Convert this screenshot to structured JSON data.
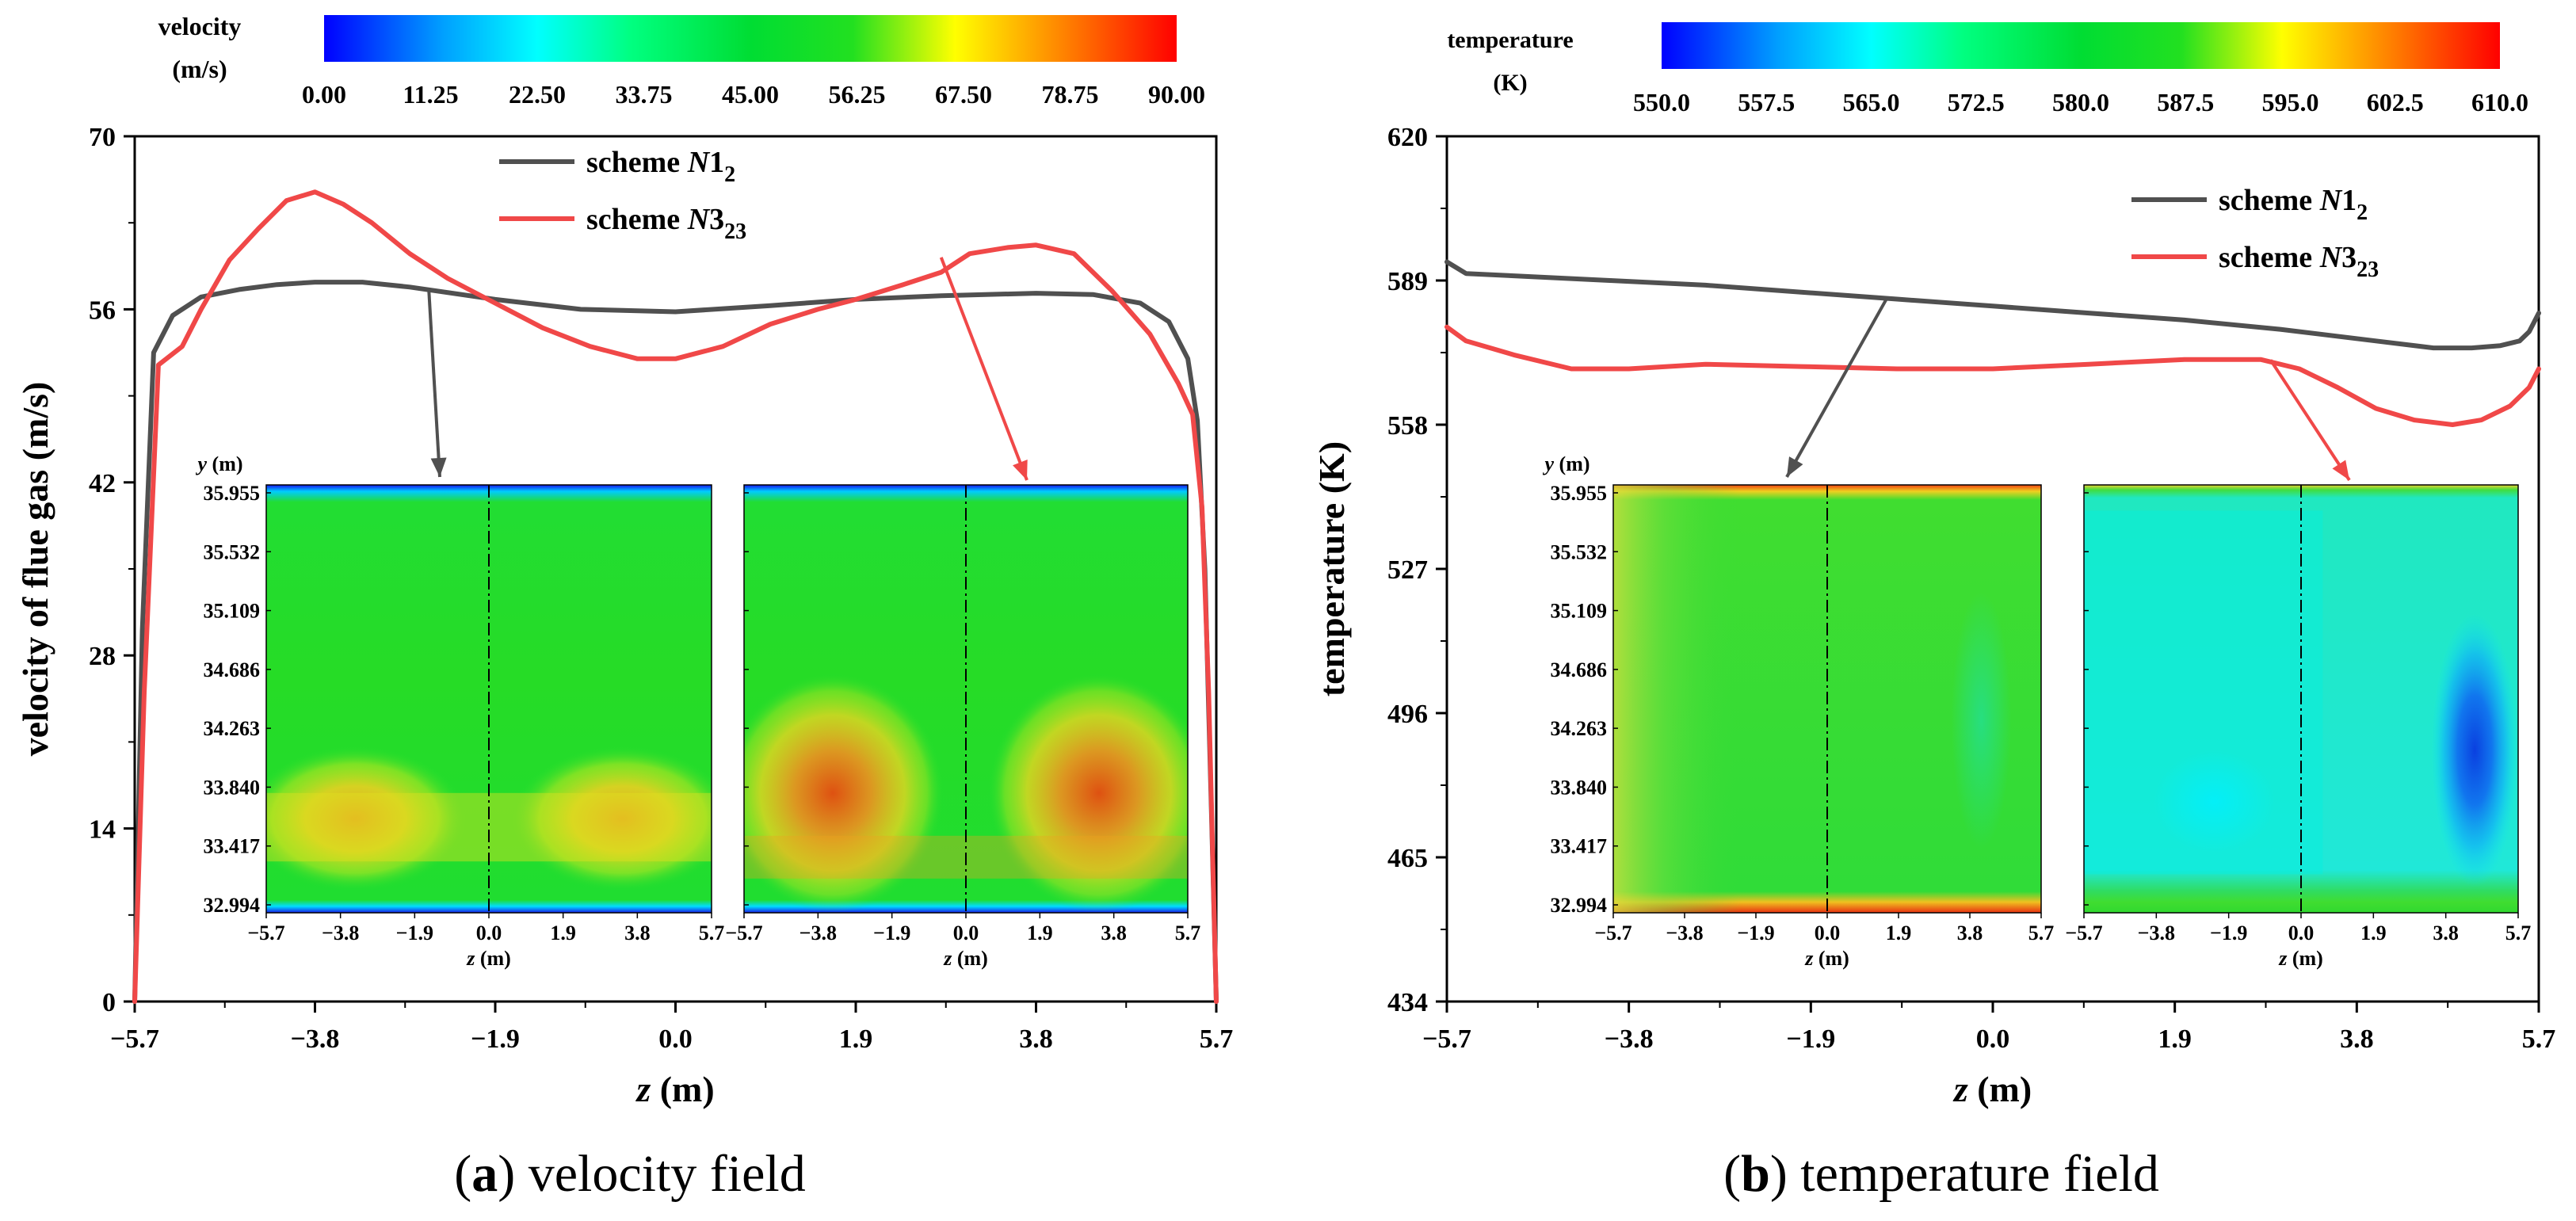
{
  "colors": {
    "n1_line": "#505050",
    "n3_line": "#f04848",
    "axis": "#000000",
    "colormap": [
      "#0000ff",
      "#00a0ff",
      "#00ffff",
      "#00ff80",
      "#00dd33",
      "#22e020",
      "#ffff00",
      "#ff8000",
      "#ff0000"
    ]
  },
  "panels": [
    {
      "id": "a",
      "caption_label": "a",
      "caption_text": "velocity field",
      "colorbar": {
        "label_line1": "velocity",
        "label_line2": "(m/s)",
        "ticks": [
          "0.00",
          "11.25",
          "22.50",
          "33.75",
          "45.00",
          "56.25",
          "67.50",
          "78.75",
          "90.00"
        ]
      },
      "chart_data": {
        "type": "line",
        "title": "",
        "xlabel": "z (m)",
        "xlabel_var": "z",
        "xlabel_unit": " (m)",
        "ylabel": "velocity of flue gas (m/s)",
        "xlim": [
          -5.7,
          5.7
        ],
        "ylim": [
          0,
          70
        ],
        "xticks": [
          "-5.7",
          "-3.8",
          "-1.9",
          "0.0",
          "1.9",
          "3.8",
          "5.7"
        ],
        "yticks": [
          "0",
          "14",
          "28",
          "42",
          "56",
          "70"
        ],
        "legend_position": "top-center",
        "series": [
          {
            "name": "scheme N1_2",
            "legend_prefix": "scheme ",
            "legend_var": "N",
            "legend_num": "1",
            "legend_sub": "2",
            "x": [
              -5.7,
              -5.62,
              -5.5,
              -5.3,
              -5.0,
              -4.6,
              -4.2,
              -3.8,
              -3.3,
              -2.8,
              -1.9,
              -1.0,
              0.0,
              1.0,
              1.9,
              2.8,
              3.8,
              4.4,
              4.9,
              5.2,
              5.4,
              5.5,
              5.58,
              5.65,
              5.7
            ],
            "values": [
              0,
              30,
              52.5,
              55.5,
              57,
              57.6,
              58.0,
              58.2,
              58.2,
              57.8,
              56.8,
              56.0,
              55.8,
              56.3,
              56.8,
              57.1,
              57.3,
              57.2,
              56.5,
              55.0,
              52.0,
              47.0,
              35.0,
              15.0,
              0
            ]
          },
          {
            "name": "scheme N3_23",
            "legend_prefix": "scheme ",
            "legend_var": "N",
            "legend_num": "3",
            "legend_sub": "23",
            "x": [
              -5.7,
              -5.6,
              -5.45,
              -5.2,
              -5.0,
              -4.7,
              -4.4,
              -4.1,
              -3.8,
              -3.5,
              -3.2,
              -2.8,
              -2.4,
              -1.9,
              -1.4,
              -0.9,
              -0.4,
              0.0,
              0.5,
              1.0,
              1.5,
              1.9,
              2.4,
              2.8,
              3.1,
              3.5,
              3.8,
              4.2,
              4.6,
              5.0,
              5.3,
              5.45,
              5.55,
              5.62,
              5.7
            ],
            "values": [
              0,
              25,
              51.5,
              53,
              56,
              60,
              62.5,
              64.8,
              65.5,
              64.5,
              63,
              60.5,
              58.5,
              56.5,
              54.5,
              53.0,
              52.0,
              52.0,
              53.0,
              54.8,
              56.0,
              56.8,
              58.0,
              59.0,
              60.5,
              61.0,
              61.2,
              60.5,
              57.5,
              54.0,
              50.0,
              47.5,
              40.0,
              25.0,
              0
            ]
          }
        ]
      },
      "insets": {
        "ylabel": "y (m)",
        "xlabel": "z (m)",
        "yticks": [
          "35.955",
          "35.532",
          "35.109",
          "34.686",
          "34.263",
          "33.840",
          "33.417",
          "32.994"
        ],
        "xticks": [
          "-5.7",
          "-3.8",
          "-1.9",
          "0.0",
          "1.9",
          "3.8",
          "5.7"
        ]
      }
    },
    {
      "id": "b",
      "caption_label": "b",
      "caption_text": "temperature field",
      "colorbar": {
        "label_line1": "temperature",
        "label_line2": "(K)",
        "ticks": [
          "550.0",
          "557.5",
          "565.0",
          "572.5",
          "580.0",
          "587.5",
          "595.0",
          "602.5",
          "610.0"
        ]
      },
      "chart_data": {
        "type": "line",
        "title": "",
        "xlabel": "z (m)",
        "xlabel_var": "z",
        "xlabel_unit": " (m)",
        "ylabel": "temperature  (K)",
        "xlim": [
          -5.7,
          5.7
        ],
        "ylim": [
          434,
          620
        ],
        "xticks": [
          "-5.7",
          "-3.8",
          "-1.9",
          "0.0",
          "1.9",
          "3.8",
          "5.7"
        ],
        "yticks": [
          "434",
          "465",
          "496",
          "527",
          "558",
          "589",
          "620"
        ],
        "legend_position": "top-right",
        "series": [
          {
            "name": "scheme N1_2",
            "legend_prefix": "scheme ",
            "legend_var": "N",
            "legend_num": "1",
            "legend_sub": "2",
            "x": [
              -5.7,
              -5.5,
              -5.0,
              -4.0,
              -3.0,
              -2.0,
              -1.0,
              0.0,
              1.0,
              2.0,
              3.0,
              4.0,
              4.6,
              5.0,
              5.3,
              5.5,
              5.6,
              5.7
            ],
            "values": [
              593,
              590.5,
              590,
              589,
              588,
              586.5,
              585,
              583.5,
              582,
              580.5,
              578.5,
              576,
              574.5,
              574.5,
              575,
              576,
              578,
              582
            ]
          },
          {
            "name": "scheme N3_23",
            "legend_prefix": "scheme ",
            "legend_var": "N",
            "legend_num": "3",
            "legend_sub": "23",
            "x": [
              -5.7,
              -5.5,
              -5.0,
              -4.4,
              -3.8,
              -3.0,
              -2.0,
              -1.0,
              0.0,
              1.0,
              2.0,
              2.8,
              3.2,
              3.6,
              4.0,
              4.4,
              4.8,
              5.1,
              5.4,
              5.6,
              5.7
            ],
            "values": [
              579,
              576,
              573,
              570,
              570,
              571,
              570.5,
              570,
              570,
              571,
              572,
              572,
              570,
              566,
              561.5,
              559,
              558,
              559,
              562,
              566,
              570
            ]
          }
        ]
      },
      "insets": {
        "ylabel": "y (m)",
        "xlabel": "z (m)",
        "yticks": [
          "35.955",
          "35.532",
          "35.109",
          "34.686",
          "34.263",
          "33.840",
          "33.417",
          "32.994"
        ],
        "xticks": [
          "-5.7",
          "-3.8",
          "-1.9",
          "0.0",
          "1.9",
          "3.8",
          "5.7"
        ]
      }
    }
  ]
}
